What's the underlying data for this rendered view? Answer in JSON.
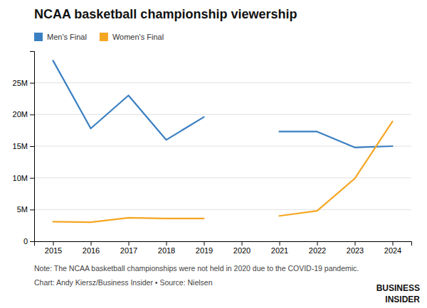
{
  "chart_data": {
    "type": "line",
    "title": "NCAA basketball championship viewership",
    "x": [
      2015,
      2016,
      2017,
      2018,
      2019,
      2020,
      2021,
      2022,
      2023,
      2024
    ],
    "series": [
      {
        "name": "Men's Final",
        "color": "#3a7fc1",
        "values": [
          28500000,
          17800000,
          23000000,
          16000000,
          19600000,
          null,
          17300000,
          17300000,
          14800000,
          15000000
        ]
      },
      {
        "name": "Women's Final",
        "color": "#f5a623",
        "values": [
          3100000,
          3000000,
          3700000,
          3600000,
          3600000,
          null,
          4000000,
          4800000,
          9900000,
          18900000
        ]
      }
    ],
    "xlim": [
      2014.5,
      2024.5
    ],
    "xticks": [
      2015,
      2016,
      2017,
      2018,
      2019,
      2020,
      2021,
      2022,
      2023,
      2024
    ],
    "ylim": [
      0,
      30000000
    ],
    "yticks": [
      0,
      {
        "value": 5000000,
        "label": "5M"
      },
      {
        "value": 10000000,
        "label": "10M"
      },
      {
        "value": 15000000,
        "label": "15M"
      },
      {
        "value": 20000000,
        "label": "20M"
      },
      {
        "value": 25000000,
        "label": "25M"
      }
    ],
    "grid": true,
    "legend": "upper left",
    "annotations": [
      "Note: The NCAA basketball championships were not held in 2020 due to the COVID-19 pandemic.",
      "Chart: Andy Kiersz/Business Insider • Source: Nielsen",
      "BUSINESS",
      "INSIDER"
    ]
  }
}
